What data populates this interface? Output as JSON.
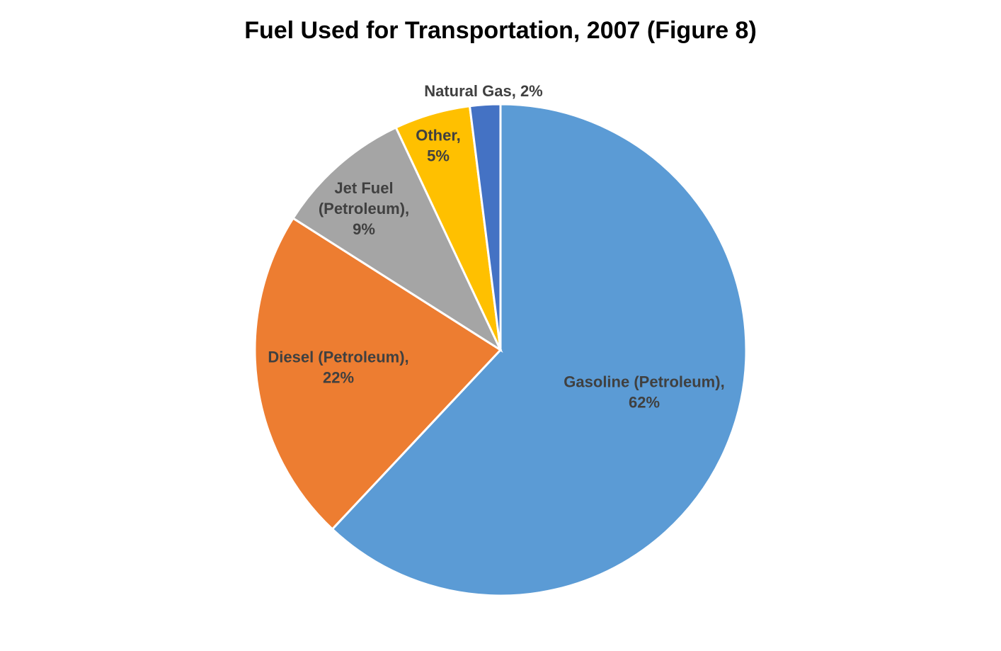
{
  "chart_data": {
    "type": "pie",
    "title": "Fuel Used for Transportation, 2007 (Figure 8)",
    "values": [
      62,
      22,
      9,
      5,
      2
    ],
    "value_labels": [
      "Gasoline (Petroleum),\n62%",
      "Diesel (Petroleum),\n22%",
      "Jet Fuel\n(Petroleum),\n9%",
      "Other,\n5%",
      "Natural Gas, 2%"
    ],
    "colors": [
      "#5b9bd5",
      "#ed7d31",
      "#a5a5a5",
      "#ffc000",
      "#4472c4"
    ]
  }
}
